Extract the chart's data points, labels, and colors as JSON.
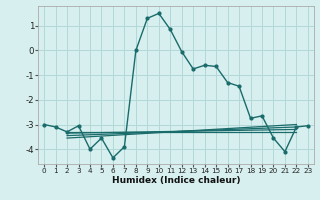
{
  "xlabel": "Humidex (Indice chaleur)",
  "bg_color": "#d7efef",
  "grid_color": "#b2d8d8",
  "line_color": "#1a6b6b",
  "xlim": [
    -0.5,
    23.5
  ],
  "ylim": [
    -4.6,
    1.8
  ],
  "yticks": [
    -4,
    -3,
    -2,
    -1,
    0,
    1
  ],
  "xticks": [
    0,
    1,
    2,
    3,
    4,
    5,
    6,
    7,
    8,
    9,
    10,
    11,
    12,
    13,
    14,
    15,
    16,
    17,
    18,
    19,
    20,
    21,
    22,
    23
  ],
  "main_line_x": [
    0,
    1,
    2,
    3,
    4,
    5,
    6,
    7,
    8,
    9,
    10,
    11,
    12,
    13,
    14,
    15,
    16,
    17,
    18,
    19,
    20,
    21,
    22,
    23
  ],
  "main_line_y": [
    -3.0,
    -3.1,
    -3.3,
    -3.05,
    -4.0,
    -3.55,
    -4.35,
    -3.9,
    0.0,
    1.3,
    1.5,
    0.85,
    -0.05,
    -0.75,
    -0.6,
    -0.65,
    -1.3,
    -1.45,
    -2.75,
    -2.65,
    -3.55,
    -4.1,
    -3.1,
    -3.05
  ],
  "flat_lines": [
    {
      "x0": 2,
      "x1": 22,
      "y0": -3.55,
      "y1": -3.0
    },
    {
      "x0": 2,
      "x1": 22,
      "y0": -3.45,
      "y1": -3.1
    },
    {
      "x0": 2,
      "x1": 22,
      "y0": -3.35,
      "y1": -3.2
    },
    {
      "x0": 2,
      "x1": 22,
      "y0": -3.3,
      "y1": -3.3
    }
  ]
}
